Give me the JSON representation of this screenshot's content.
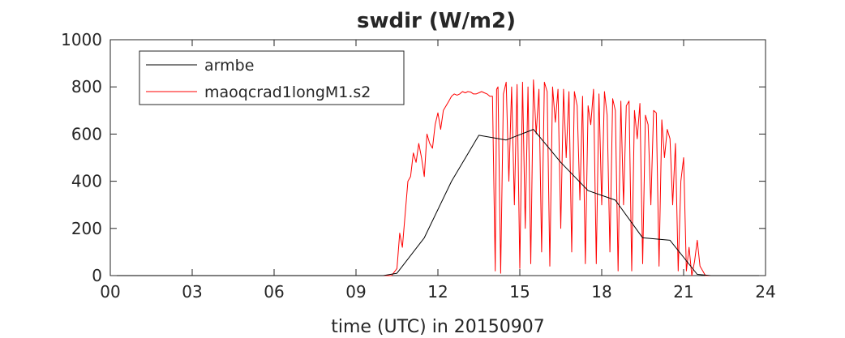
{
  "chart_data": {
    "type": "line",
    "title": "swdir  (W/m2)",
    "xlabel": "time (UTC) in 20150907",
    "ylabel": "",
    "xlim": [
      0,
      24
    ],
    "ylim": [
      0,
      1000
    ],
    "xticks": [
      0,
      3,
      6,
      9,
      12,
      15,
      18,
      21,
      24
    ],
    "xtick_labels": [
      "00",
      "03",
      "06",
      "09",
      "12",
      "15",
      "18",
      "21",
      "24"
    ],
    "yticks": [
      0,
      200,
      400,
      600,
      800,
      1000
    ],
    "ytick_labels": [
      "0",
      "200",
      "400",
      "600",
      "800",
      "1000"
    ],
    "grid": false,
    "legend": "top-left",
    "series": [
      {
        "name": "armbe",
        "color": "#000000",
        "x": [
          0,
          1,
          2,
          3,
          4,
          5,
          6,
          7,
          8,
          9,
          10,
          10.5,
          11.5,
          12.5,
          13.5,
          14.5,
          15.5,
          16.5,
          17.5,
          18.5,
          19.5,
          20.5,
          21.5,
          22,
          23,
          24
        ],
        "y": [
          0,
          0,
          0,
          0,
          0,
          0,
          0,
          0,
          0,
          0,
          0,
          10,
          160,
          400,
          595,
          575,
          620,
          480,
          360,
          320,
          160,
          150,
          5,
          0,
          0,
          0
        ]
      },
      {
        "name": "maoqcrad1longM1.s2",
        "color": "#ff0000",
        "x": [
          0,
          10.3,
          10.5,
          10.6,
          10.7,
          10.8,
          10.9,
          11.0,
          11.1,
          11.2,
          11.3,
          11.4,
          11.5,
          11.6,
          11.7,
          11.8,
          11.9,
          12.0,
          12.1,
          12.2,
          12.3,
          12.4,
          12.5,
          12.6,
          12.7,
          12.8,
          12.9,
          13.0,
          13.1,
          13.2,
          13.3,
          13.4,
          13.5,
          13.6,
          13.7,
          13.8,
          13.9,
          14.0,
          14.1,
          14.15,
          14.2,
          14.3,
          14.4,
          14.5,
          14.6,
          14.7,
          14.8,
          14.9,
          15.0,
          15.1,
          15.2,
          15.3,
          15.4,
          15.5,
          15.6,
          15.7,
          15.8,
          15.9,
          16.0,
          16.1,
          16.2,
          16.3,
          16.4,
          16.5,
          16.6,
          16.7,
          16.8,
          16.9,
          17.0,
          17.1,
          17.2,
          17.3,
          17.4,
          17.5,
          17.6,
          17.7,
          17.8,
          17.9,
          18.0,
          18.1,
          18.2,
          18.3,
          18.4,
          18.5,
          18.6,
          18.7,
          18.8,
          18.9,
          19.0,
          19.1,
          19.2,
          19.3,
          19.4,
          19.5,
          19.6,
          19.7,
          19.8,
          19.9,
          20.0,
          20.1,
          20.2,
          20.3,
          20.4,
          20.5,
          20.6,
          20.7,
          20.8,
          20.9,
          21.0,
          21.1,
          21.2,
          21.3,
          21.4,
          21.5,
          21.6,
          21.7,
          21.8,
          21.9,
          22.0,
          24
        ],
        "y": [
          0,
          0,
          30,
          180,
          120,
          260,
          400,
          420,
          520,
          480,
          560,
          500,
          420,
          600,
          560,
          540,
          640,
          690,
          620,
          700,
          720,
          740,
          760,
          770,
          765,
          770,
          780,
          775,
          780,
          778,
          770,
          770,
          775,
          780,
          775,
          770,
          760,
          760,
          20,
          790,
          800,
          10,
          770,
          820,
          400,
          800,
          300,
          810,
          30,
          820,
          200,
          800,
          50,
          830,
          600,
          790,
          100,
          820,
          780,
          40,
          800,
          650,
          790,
          200,
          790,
          500,
          780,
          100,
          780,
          720,
          320,
          760,
          50,
          720,
          640,
          790,
          50,
          770,
          300,
          780,
          680,
          100,
          750,
          700,
          20,
          740,
          300,
          720,
          740,
          20,
          700,
          580,
          730,
          50,
          680,
          640,
          300,
          700,
          690,
          40,
          660,
          500,
          620,
          580,
          300,
          560,
          20,
          400,
          500,
          20,
          120,
          0,
          60,
          150,
          40,
          20,
          0,
          0,
          0,
          0
        ]
      }
    ]
  }
}
